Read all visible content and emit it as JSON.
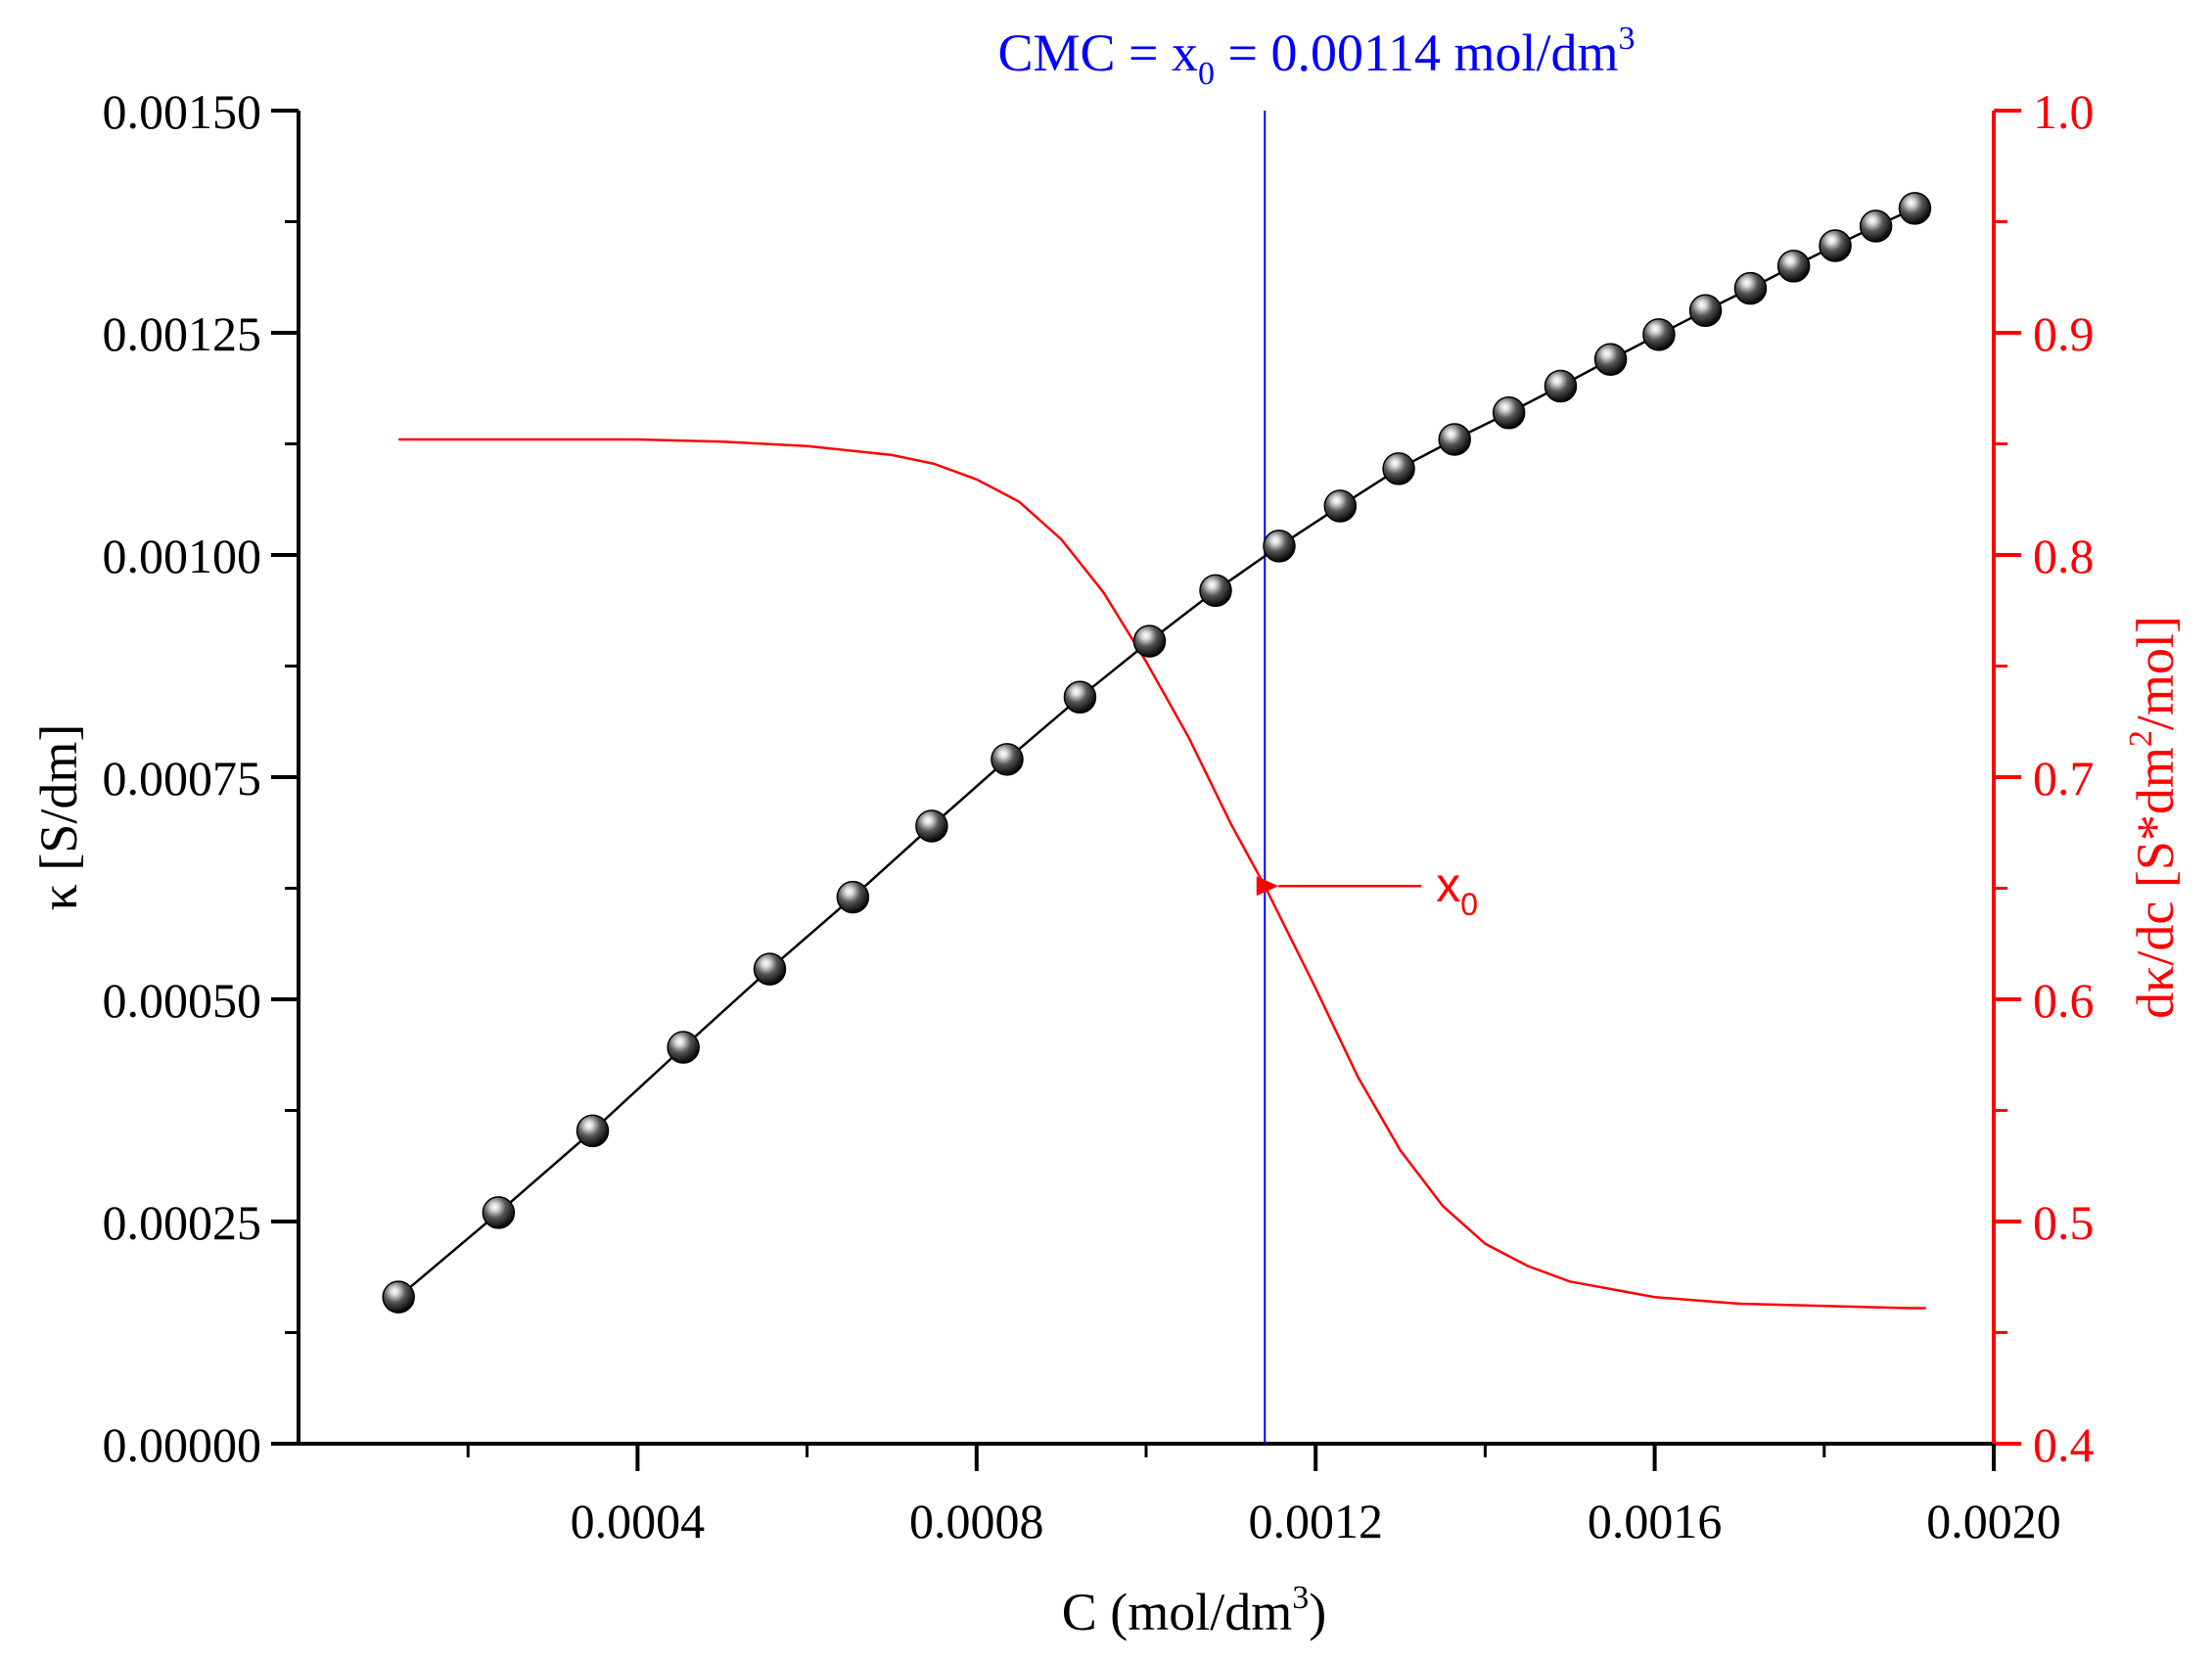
{
  "chart_data": {
    "type": "line",
    "title": "CMC = x",
    "title_subscript": "0",
    "title_value": " = 0.00114 mol/dm",
    "title_superscript": "3",
    "xlabel": "C (mol/dm",
    "xlabel_superscript": "3",
    "xlabel_close": ")",
    "ylabel_left": "κ [S/dm]",
    "ylabel_right_prefix": "dκ/dc [S*dm",
    "ylabel_right_superscript": "2",
    "ylabel_right_suffix": "/mol]",
    "xlim": [
      0.0,
      0.002
    ],
    "ylim_left": [
      0.0,
      0.0015
    ],
    "ylim_right": [
      0.4,
      1.0
    ],
    "x_ticks": [
      "0.0004",
      "0.0008",
      "0.0012",
      "0.0016",
      "0.0020"
    ],
    "x_tick_values": [
      0.0004,
      0.0008,
      0.0012,
      0.0016,
      0.002
    ],
    "y_left_ticks": [
      "0.00000",
      "0.00025",
      "0.00050",
      "0.00075",
      "0.00100",
      "0.00125",
      "0.00150"
    ],
    "y_left_tick_values": [
      0.0,
      0.00025,
      0.0005,
      0.00075,
      0.001,
      0.00125,
      0.0015
    ],
    "y_right_ticks": [
      "0.4",
      "0.5",
      "0.6",
      "0.7",
      "0.8",
      "0.9",
      "1.0"
    ],
    "y_right_tick_values": [
      0.4,
      0.5,
      0.6,
      0.7,
      0.8,
      0.9,
      1.0
    ],
    "cmc_x": 0.00114,
    "annotation_label": "x",
    "annotation_subscript": "0",
    "annotation_point": [
      0.00114,
      0.651
    ],
    "series": [
      {
        "name": "κ",
        "axis": "left",
        "color": "#000000",
        "x": [
          0.000118,
          0.000236,
          0.000347,
          0.000454,
          0.000556,
          0.000654,
          0.000747,
          0.000836,
          0.000922,
          0.001004,
          0.001082,
          0.001157,
          0.001229,
          0.001298,
          0.001364,
          0.001428,
          0.001489,
          0.001548,
          0.001605,
          0.00166,
          0.001713,
          0.001764,
          0.001813,
          0.001861,
          0.001907
        ],
        "y": [
          0.000165,
          0.00026,
          0.000352,
          0.000446,
          0.000534,
          0.000615,
          0.000695,
          0.00077,
          0.00084,
          0.000903,
          0.00096,
          0.00101,
          0.001055,
          0.001097,
          0.00113,
          0.00116,
          0.00119,
          0.00122,
          0.001248,
          0.001275,
          0.0013,
          0.001325,
          0.001348,
          0.00137,
          0.00139
        ]
      },
      {
        "name": "dκ/dc",
        "axis": "right",
        "color": "#ff0000",
        "x": [
          0.000118,
          0.0002,
          0.0003,
          0.0004,
          0.0005,
          0.0006,
          0.0007,
          0.00075,
          0.0008,
          0.00085,
          0.0009,
          0.00095,
          0.001,
          0.00105,
          0.0011,
          0.00114,
          0.0012,
          0.00125,
          0.0013,
          0.00135,
          0.0014,
          0.00145,
          0.0015,
          0.0016,
          0.0017,
          0.0018,
          0.0019,
          0.00192
        ],
        "y": [
          0.852,
          0.852,
          0.852,
          0.852,
          0.851,
          0.849,
          0.845,
          0.841,
          0.834,
          0.824,
          0.807,
          0.783,
          0.752,
          0.718,
          0.679,
          0.651,
          0.605,
          0.565,
          0.532,
          0.507,
          0.49,
          0.48,
          0.473,
          0.466,
          0.463,
          0.462,
          0.461,
          0.461
        ]
      }
    ]
  },
  "colors": {
    "cmc_line": "#0000ff",
    "right_axis": "#ff0000",
    "left_axis": "#000000"
  }
}
